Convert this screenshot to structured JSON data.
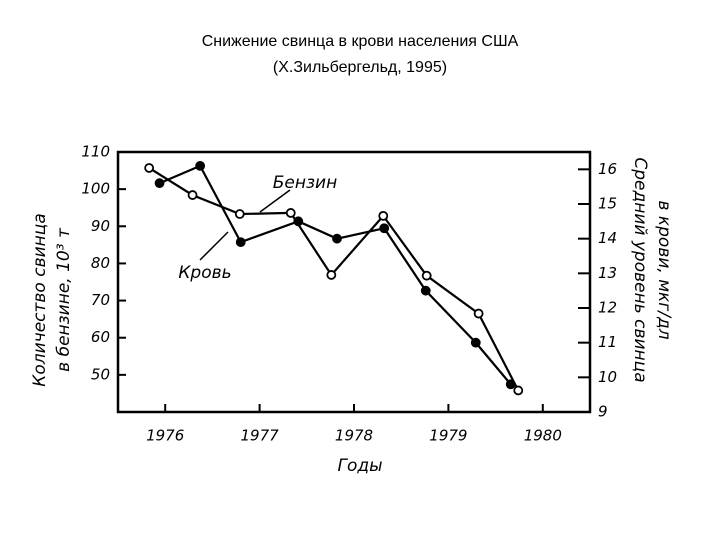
{
  "chart_data": {
    "type": "line",
    "title": "Снижение свинца в крови населения США",
    "subtitle": "(Х.Зильбергельд, 1995)",
    "xlabel": "Годы",
    "ylabel": [
      "Количество свинца",
      "в бензине, 10³ т"
    ],
    "y2label": [
      "Средний уровень свинца",
      "в крови, мкг/дл"
    ],
    "xlim": [
      1975.5,
      1980.5
    ],
    "xticks": [
      1976,
      1977,
      1978,
      1979,
      1980
    ],
    "ylim": [
      40,
      110
    ],
    "yticks": [
      50,
      60,
      70,
      80,
      90,
      100,
      110
    ],
    "y2lim": [
      9,
      16.5
    ],
    "y2ticks": [
      9,
      10,
      11,
      12,
      13,
      14,
      15,
      16
    ],
    "series": [
      {
        "name": "Бензин",
        "color": "#000000",
        "marker": "open",
        "x": [
          1975.83,
          1976.29,
          1976.79,
          1977.33,
          1977.76,
          1978.31,
          1978.77,
          1979.32,
          1979.74
        ],
        "values": [
          105.7,
          98.4,
          93.3,
          93.6,
          76.9,
          92.8,
          76.7,
          66.5,
          45.8
        ]
      },
      {
        "name": "Кровь",
        "color": "#000000",
        "marker": "filled",
        "axis": "y2",
        "x": [
          1975.94,
          1976.37,
          1976.8,
          1977.41,
          1977.82,
          1978.32,
          1978.76,
          1979.29,
          1979.66
        ],
        "values": [
          15.6,
          16.1,
          13.9,
          14.5,
          14.0,
          14.3,
          12.5,
          11.0,
          9.8
        ]
      }
    ]
  }
}
